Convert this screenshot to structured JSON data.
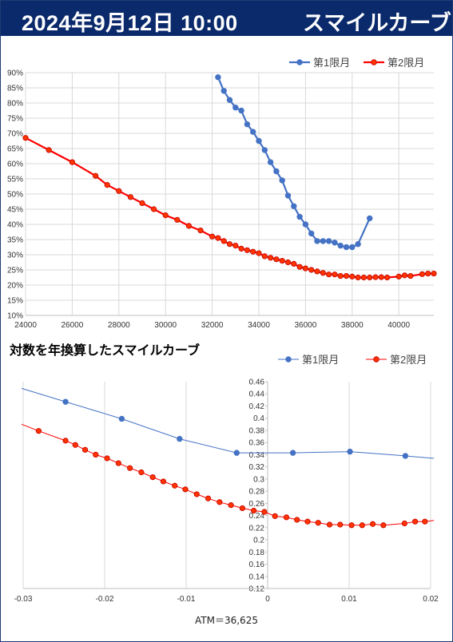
{
  "header": {
    "date": "2024年9月12日 10:00",
    "title": "スマイルカーブ"
  },
  "colors": {
    "header_bg": "#0b2a6b",
    "series1": "#4472c4",
    "series2": "#ff0000",
    "series2_fill": "#ff3300"
  },
  "chart_data": [
    {
      "type": "line",
      "title": "",
      "xlabel": "",
      "ylabel": "",
      "xlim": [
        24000,
        41500
      ],
      "ylim": [
        0.1,
        0.9
      ],
      "xticks": [
        "24000",
        "26000",
        "28000",
        "30000",
        "32000",
        "34000",
        "36000",
        "38000",
        "40000"
      ],
      "yticks": [
        "10%",
        "15%",
        "20%",
        "25%",
        "30%",
        "35%",
        "40%",
        "45%",
        "50%",
        "55%",
        "60%",
        "65%",
        "70%",
        "75%",
        "80%",
        "85%",
        "90%"
      ],
      "legend": "top-right",
      "grid": true,
      "series": [
        {
          "name": "第1限月",
          "x": [
            32250,
            32500,
            32750,
            33000,
            33250,
            33500,
            33750,
            34000,
            34250,
            34500,
            34750,
            35000,
            35250,
            35500,
            35750,
            36000,
            36250,
            36500,
            36750,
            37000,
            37250,
            37500,
            37750,
            38000,
            38250,
            38750
          ],
          "y": [
            0.885,
            0.84,
            0.81,
            0.785,
            0.775,
            0.73,
            0.705,
            0.675,
            0.645,
            0.605,
            0.575,
            0.545,
            0.495,
            0.46,
            0.425,
            0.4,
            0.37,
            0.345,
            0.345,
            0.345,
            0.34,
            0.33,
            0.325,
            0.325,
            0.335,
            0.42
          ]
        },
        {
          "name": "第2限月",
          "x": [
            24000,
            25000,
            26000,
            27000,
            27500,
            28000,
            28500,
            29000,
            29500,
            30000,
            30500,
            31000,
            31500,
            32000,
            32250,
            32500,
            32750,
            33000,
            33250,
            33500,
            33750,
            34000,
            34250,
            34500,
            34750,
            35000,
            35250,
            35500,
            35750,
            36000,
            36250,
            36500,
            36750,
            37000,
            37250,
            37500,
            37750,
            38000,
            38250,
            38500,
            38750,
            39000,
            39250,
            39500,
            40000,
            40250,
            40500,
            41000,
            41250,
            41500
          ],
          "y": [
            0.685,
            0.645,
            0.605,
            0.56,
            0.53,
            0.51,
            0.49,
            0.47,
            0.45,
            0.43,
            0.415,
            0.395,
            0.38,
            0.36,
            0.355,
            0.345,
            0.335,
            0.33,
            0.32,
            0.315,
            0.31,
            0.305,
            0.295,
            0.29,
            0.285,
            0.28,
            0.275,
            0.27,
            0.26,
            0.255,
            0.25,
            0.245,
            0.24,
            0.235,
            0.235,
            0.23,
            0.23,
            0.228,
            0.225,
            0.225,
            0.225,
            0.226,
            0.226,
            0.225,
            0.228,
            0.232,
            0.23,
            0.236,
            0.238,
            0.238
          ]
        }
      ]
    },
    {
      "type": "line",
      "title": "対数を年換算したスマイルカーブ",
      "xlabel": "ATM＝36,625",
      "ylabel": "",
      "xlim": [
        -0.03,
        0.02
      ],
      "ylim": [
        0.12,
        0.46
      ],
      "xticks": [
        "-0.03",
        "-0.02",
        "-0.01",
        "0",
        "0.01",
        "0.02"
      ],
      "yticks": [
        "0.12",
        "0.14",
        "0.16",
        "0.18",
        "0.2",
        "0.22",
        "0.24",
        "0.26",
        "0.28",
        "0.3",
        "0.32",
        "0.34",
        "0.36",
        "0.38",
        "0.4",
        "0.42",
        "0.44",
        "0.46"
      ],
      "legend": "top-right",
      "grid": true,
      "series": [
        {
          "name": "第1限月",
          "x": [
            -0.0302,
            -0.0248,
            -0.0179,
            -0.0108,
            -0.0038,
            0.0031,
            0.0101,
            0.0169,
            0.0204
          ],
          "y": [
            0.449,
            0.427,
            0.399,
            0.366,
            0.343,
            0.343,
            0.345,
            0.338,
            0.334
          ]
        },
        {
          "name": "第2限月",
          "x": [
            -0.0302,
            -0.0281,
            -0.0248,
            -0.0236,
            -0.0224,
            -0.0211,
            -0.0197,
            -0.0183,
            -0.0169,
            -0.0155,
            -0.0141,
            -0.0128,
            -0.0114,
            -0.0101,
            -0.0087,
            -0.0073,
            -0.0059,
            -0.0045,
            -0.0031,
            -0.0017,
            -0.0004,
            0.0009,
            0.0023,
            0.0036,
            0.0049,
            0.0062,
            0.0076,
            0.0089,
            0.0103,
            0.0116,
            0.0129,
            0.0142,
            0.0168,
            0.0181,
            0.0193,
            0.0204
          ],
          "y": [
            0.39,
            0.379,
            0.363,
            0.356,
            0.348,
            0.34,
            0.334,
            0.326,
            0.318,
            0.311,
            0.303,
            0.296,
            0.289,
            0.283,
            0.275,
            0.268,
            0.262,
            0.257,
            0.252,
            0.248,
            0.246,
            0.239,
            0.237,
            0.233,
            0.23,
            0.228,
            0.225,
            0.225,
            0.224,
            0.224,
            0.226,
            0.224,
            0.227,
            0.23,
            0.23,
            0.232
          ]
        }
      ]
    }
  ]
}
